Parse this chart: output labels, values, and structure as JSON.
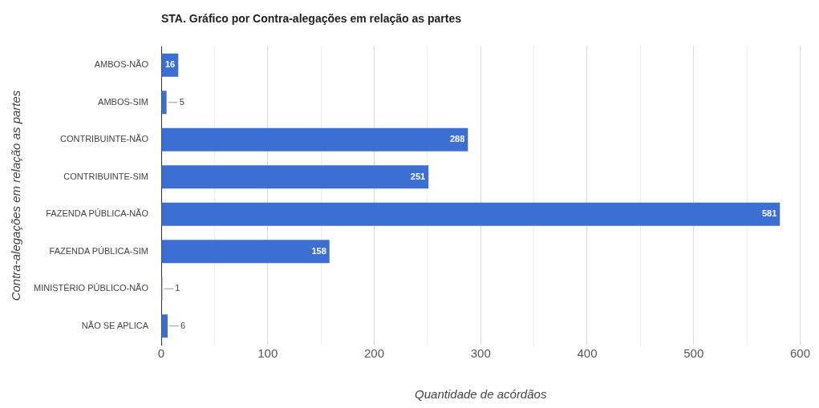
{
  "chart_data": {
    "type": "bar",
    "orientation": "horizontal",
    "title": "STA. Gráfico por Contra-alegações em relação as partes",
    "xlabel": "Quantidade de acórdãos",
    "ylabel": "Contra-alegações em relação as partes",
    "categories": [
      "AMBOS-NÃO",
      "AMBOS-SIM",
      "CONTRIBUINTE-NÃO",
      "CONTRIBUINTE-SIM",
      "FAZENDA PÚBLICA-NÃO",
      "FAZENDA PÚBLICA-SIM",
      "MINISTÉRIO PÚBLICO-NÃO",
      "NÃO SE APLICA"
    ],
    "values": [
      16,
      5,
      288,
      251,
      581,
      158,
      1,
      6
    ],
    "color": "#3b6fd4",
    "xlim": [
      0,
      600
    ],
    "xticks": [
      0,
      {
        "value": 50,
        "label": null
      },
      100,
      {
        "value": 150,
        "label": null
      },
      200,
      {
        "value": 250,
        "label": null
      },
      300,
      {
        "value": 350,
        "label": null
      },
      400,
      {
        "value": 450,
        "label": null
      },
      500,
      {
        "value": 550,
        "label": null
      },
      600
    ],
    "grid": "x",
    "legend": false,
    "data_labels": true
  }
}
